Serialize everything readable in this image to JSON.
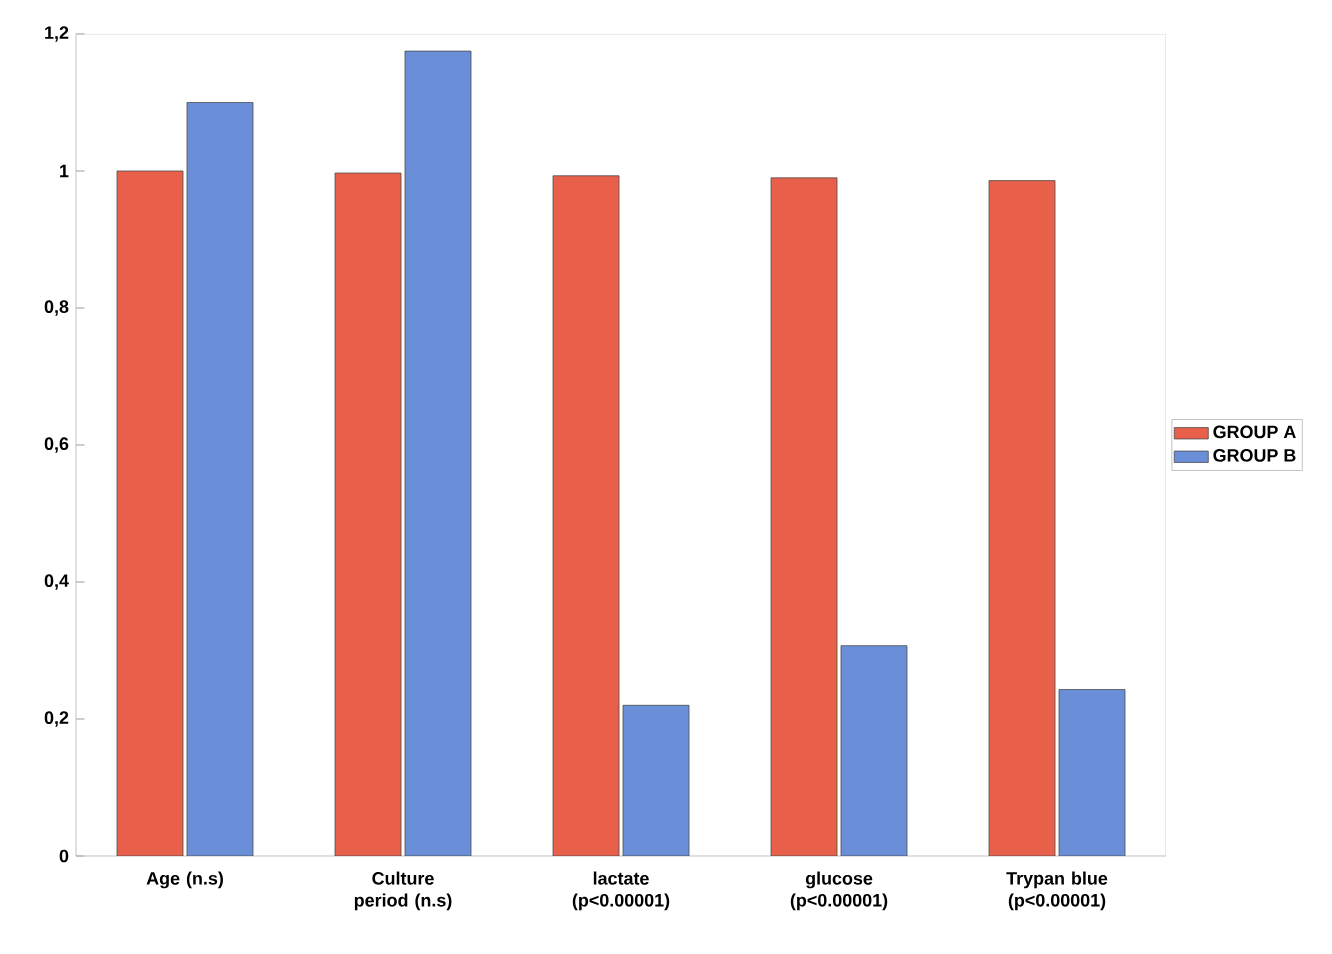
{
  "chart_data": {
    "type": "bar",
    "categories": [
      "Age (n.s)",
      "Culture period (n.s)",
      "lactate (p<0.00001)",
      "glucose (p<0.00001)",
      "Trypan blue (p<0.00001)"
    ],
    "series": [
      {
        "name": "GROUP A",
        "color": "#e8604a",
        "values": [
          1.0,
          0.997,
          0.993,
          0.99,
          0.986
        ]
      },
      {
        "name": "GROUP B",
        "color": "#6a8fd8",
        "values": [
          1.1,
          1.175,
          0.22,
          0.307,
          0.243
        ]
      }
    ],
    "ylim": [
      0,
      1.2
    ],
    "yticks": [
      {
        "value": 0,
        "label": "0"
      },
      {
        "value": 0.2,
        "label": "0,2"
      },
      {
        "value": 0.4,
        "label": "0,4"
      },
      {
        "value": 0.6,
        "label": "0,6"
      },
      {
        "value": 0.8,
        "label": "0,8"
      },
      {
        "value": 1,
        "label": "1"
      },
      {
        "value": 1.2,
        "label": "1,2"
      }
    ],
    "legend": "right"
  }
}
